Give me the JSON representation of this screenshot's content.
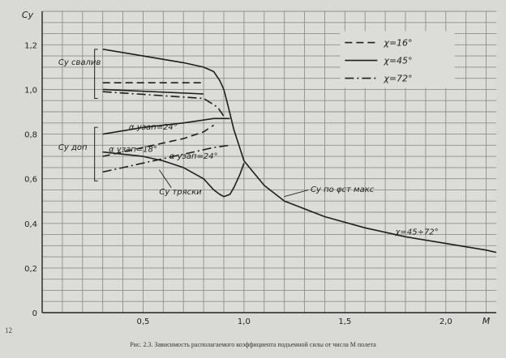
{
  "chart_data": {
    "type": "line",
    "title": "",
    "caption": "Рис. 2.3. Зависимость располагаемого коэффициента подъемной силы от числа М полета",
    "page_number": "12",
    "xlabel": "M",
    "ylabel": "Cy",
    "xlim": [
      0,
      2.25
    ],
    "ylim": [
      0,
      1.35
    ],
    "x_ticks": [
      0.5,
      1.0,
      1.5,
      2.0
    ],
    "x_tick_labels": [
      "0,5",
      "1,0",
      "1,5",
      "2,0"
    ],
    "y_ticks": [
      0,
      0.2,
      0.4,
      0.6,
      0.8,
      1.0,
      1.2
    ],
    "y_tick_labels": [
      "0",
      "0,2",
      "0,4",
      "0,6",
      "0,8",
      "1,0",
      "1,2"
    ],
    "grid": true,
    "legend_position": "top-right",
    "legend": [
      {
        "label": "χ=16°",
        "style": "dashed"
      },
      {
        "label": "χ=45°",
        "style": "solid"
      },
      {
        "label": "χ=72°",
        "style": "dashdot"
      }
    ],
    "annotations": {
      "cy_stall": "Cy свалив",
      "cy_allow": "Cy доп",
      "cy_buffet": "Cy тряски",
      "cy_phi": "Cy по φст макс",
      "chi_range": "χ=45÷72°",
      "alpha_24_top": "α узап=24°",
      "alpha_18": "α узап=18°",
      "alpha_24_low": "α узап=24°"
    },
    "series": [
      {
        "style": "solid",
        "x": [
          0.3,
          0.5,
          0.7,
          0.8,
          0.85,
          0.88,
          0.9,
          0.92,
          0.95,
          1.0,
          1.1,
          1.2,
          1.4,
          1.6,
          1.8,
          2.0,
          2.2,
          2.25
        ],
        "y": [
          1.18,
          1.15,
          1.12,
          1.1,
          1.08,
          1.04,
          1.0,
          0.93,
          0.82,
          0.68,
          0.57,
          0.5,
          0.43,
          0.38,
          0.34,
          0.31,
          0.28,
          0.27
        ]
      },
      {
        "style": "dashed",
        "x": [
          0.3,
          0.8
        ],
        "y": [
          1.03,
          1.03
        ]
      },
      {
        "style": "solid",
        "x": [
          0.3,
          0.8
        ],
        "y": [
          1.0,
          0.98
        ]
      },
      {
        "style": "dashdot",
        "x": [
          0.3,
          0.8,
          0.87,
          0.9
        ],
        "y": [
          0.99,
          0.96,
          0.92,
          0.88
        ]
      },
      {
        "style": "solid",
        "x": [
          0.3,
          0.5,
          0.7,
          0.85,
          0.93
        ],
        "y": [
          0.8,
          0.83,
          0.85,
          0.87,
          0.87
        ]
      },
      {
        "style": "dashed",
        "x": [
          0.3,
          0.5,
          0.7,
          0.8,
          0.85
        ],
        "y": [
          0.7,
          0.74,
          0.78,
          0.81,
          0.84
        ]
      },
      {
        "style": "dashdot",
        "x": [
          0.3,
          0.5,
          0.7,
          0.85,
          0.93
        ],
        "y": [
          0.63,
          0.67,
          0.71,
          0.74,
          0.75
        ]
      },
      {
        "style": "solid",
        "x": [
          0.3,
          0.5,
          0.6,
          0.7,
          0.8,
          0.85,
          0.88,
          0.9,
          0.93,
          0.95,
          0.98,
          1.0
        ],
        "y": [
          0.72,
          0.7,
          0.68,
          0.65,
          0.6,
          0.55,
          0.53,
          0.52,
          0.53,
          0.56,
          0.62,
          0.67
        ]
      }
    ]
  }
}
